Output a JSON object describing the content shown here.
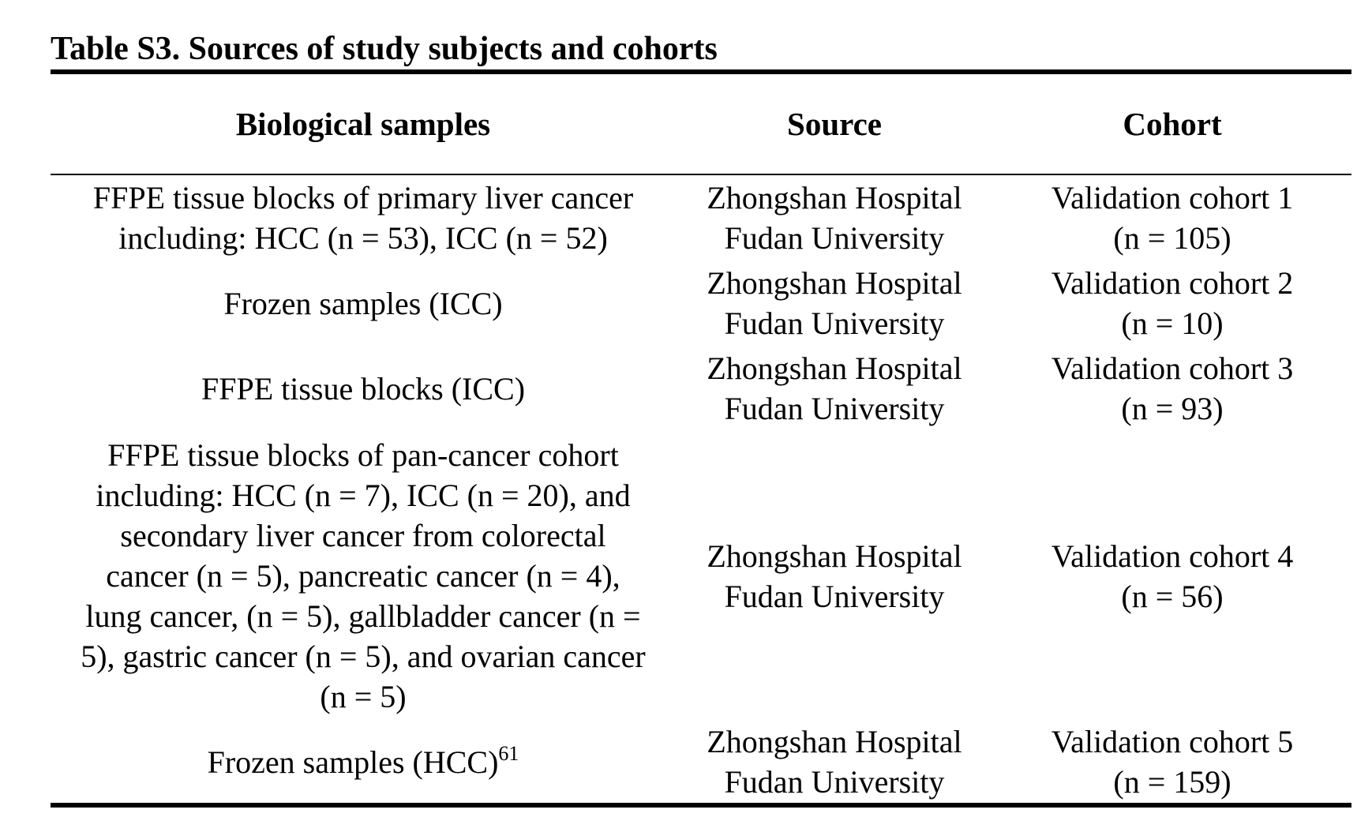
{
  "table": {
    "caption": "Table S3. Sources of study subjects and cohorts",
    "headers": [
      "Biological samples",
      "Source",
      "Cohort"
    ],
    "rows": [
      {
        "samples": "FFPE tissue blocks of primary liver cancer\nincluding: HCC (n = 53), ICC (n = 52)",
        "source": "Zhongshan Hospital\nFudan University",
        "cohort": "Validation cohort 1\n(n = 105)"
      },
      {
        "samples": "Frozen samples (ICC)",
        "source": "Zhongshan Hospital\nFudan University",
        "cohort": "Validation cohort 2\n(n = 10)"
      },
      {
        "samples": "FFPE tissue blocks (ICC)",
        "source": "Zhongshan Hospital\nFudan University",
        "cohort": "Validation cohort 3\n(n = 93)"
      },
      {
        "samples": "FFPE tissue blocks of pan-cancer cohort\nincluding: HCC (n = 7), ICC (n = 20), and\nsecondary liver cancer from colorectal\ncancer (n = 5), pancreatic cancer (n = 4),\nlung cancer, (n = 5), gallbladder cancer (n =\n5), gastric cancer (n = 5), and ovarian cancer\n(n = 5)",
        "source": "Zhongshan Hospital\nFudan University",
        "cohort": "Validation cohort 4\n(n = 56)"
      },
      {
        "samples": "Frozen samples (HCC)",
        "samples_superscript": "61",
        "source": "Zhongshan Hospital\nFudan University",
        "cohort": "Validation cohort 5\n(n = 159)"
      }
    ]
  }
}
